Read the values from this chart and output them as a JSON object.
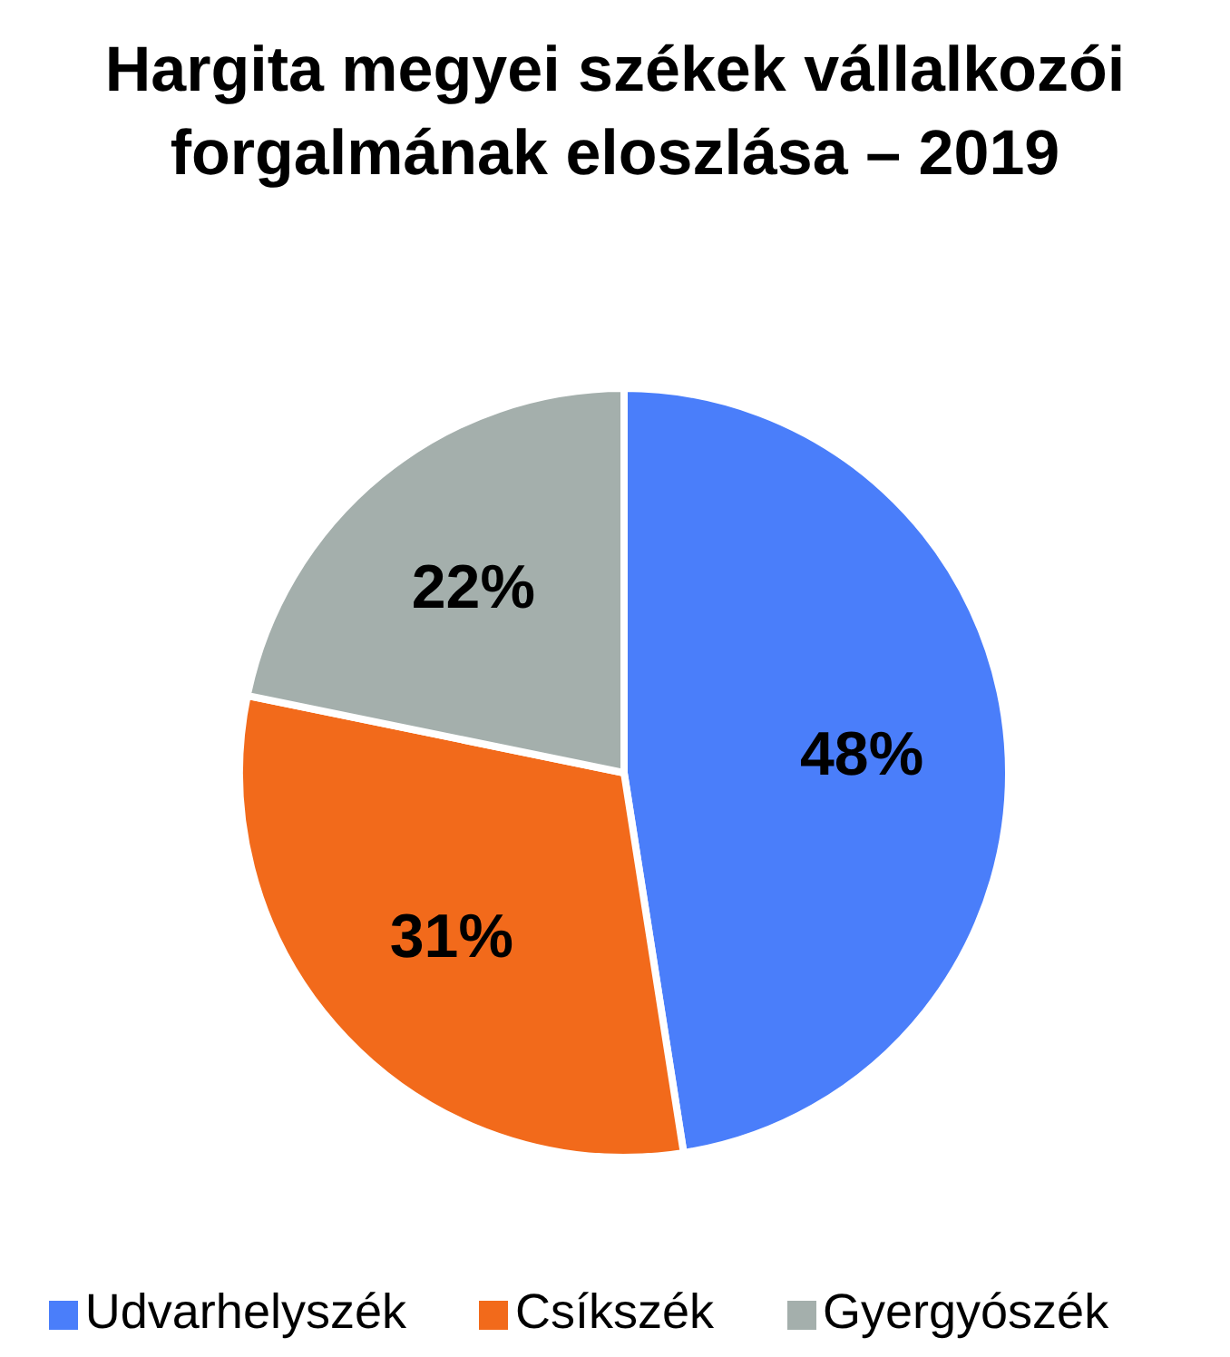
{
  "chart_data": {
    "type": "pie",
    "title": "Hargita megyei székek vállalkozói forgalmának eloszlása – 2019",
    "categories": [
      "Udvarhelyszék",
      "Csíkszék",
      "Gyergyószék"
    ],
    "values": [
      48,
      31,
      22
    ],
    "value_labels": [
      "48%",
      "31%",
      "22%"
    ],
    "colors": [
      "#4a7efa",
      "#f26a1b",
      "#a4afac"
    ],
    "legend": "bottom"
  }
}
